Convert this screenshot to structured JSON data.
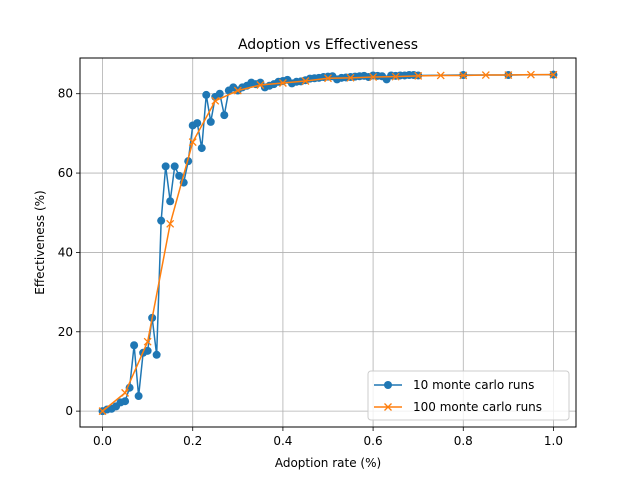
{
  "chart_data": {
    "type": "line",
    "title": "Adoption vs Effectiveness",
    "xlabel": "Adoption rate (%)",
    "ylabel": "Effectiveness (%)",
    "xlim": [
      -0.05,
      1.05
    ],
    "ylim": [
      -4,
      89
    ],
    "xticks": [
      0.0,
      0.2,
      0.4,
      0.6,
      0.8,
      1.0
    ],
    "xtick_labels": [
      "0.0",
      "0.2",
      "0.4",
      "0.6",
      "0.8",
      "1.0"
    ],
    "yticks": [
      0,
      20,
      40,
      60,
      80
    ],
    "ytick_labels": [
      "0",
      "20",
      "40",
      "60",
      "80"
    ],
    "grid": true,
    "legend_position": "lower-right",
    "series": [
      {
        "name": "10 monte carlo runs",
        "color": "#1f77b4",
        "marker": "circle",
        "x": [
          0.0,
          0.01,
          0.02,
          0.03,
          0.04,
          0.05,
          0.06,
          0.07,
          0.08,
          0.09,
          0.1,
          0.11,
          0.12,
          0.13,
          0.14,
          0.15,
          0.16,
          0.17,
          0.18,
          0.19,
          0.2,
          0.21,
          0.22,
          0.23,
          0.24,
          0.25,
          0.26,
          0.27,
          0.28,
          0.29,
          0.3,
          0.31,
          0.32,
          0.33,
          0.34,
          0.35,
          0.36,
          0.37,
          0.38,
          0.39,
          0.4,
          0.41,
          0.42,
          0.43,
          0.44,
          0.45,
          0.46,
          0.47,
          0.48,
          0.49,
          0.5,
          0.51,
          0.52,
          0.53,
          0.54,
          0.55,
          0.56,
          0.57,
          0.58,
          0.59,
          0.6,
          0.61,
          0.62,
          0.63,
          0.64,
          0.65,
          0.66,
          0.67,
          0.68,
          0.69,
          0.7,
          0.8,
          0.9,
          1.0
        ],
        "y": [
          0.0,
          0.4,
          0.6,
          1.2,
          2.2,
          2.5,
          5.9,
          16.6,
          3.8,
          14.7,
          15.2,
          23.5,
          14.2,
          48.0,
          61.7,
          52.9,
          61.7,
          59.3,
          57.6,
          63.0,
          72.0,
          72.6,
          66.3,
          79.7,
          72.9,
          79.2,
          80.0,
          74.6,
          80.8,
          81.6,
          80.8,
          81.6,
          82.0,
          82.8,
          82.4,
          82.8,
          81.6,
          82.0,
          82.4,
          83.0,
          83.2,
          83.5,
          82.6,
          83.0,
          83.1,
          83.4,
          83.8,
          83.9,
          84.0,
          84.2,
          84.3,
          84.4,
          83.6,
          84.0,
          84.1,
          84.2,
          84.3,
          84.4,
          84.5,
          84.2,
          84.6,
          84.5,
          84.4,
          83.6,
          84.6,
          84.5,
          84.6,
          84.6,
          84.7,
          84.7,
          84.6,
          84.7,
          84.7,
          84.8
        ]
      },
      {
        "name": "100 monte carlo runs",
        "color": "#ff7f0e",
        "marker": "x",
        "x": [
          0.0,
          0.05,
          0.1,
          0.15,
          0.2,
          0.25,
          0.3,
          0.35,
          0.4,
          0.45,
          0.5,
          0.55,
          0.6,
          0.65,
          0.7,
          0.75,
          0.8,
          0.85,
          0.9,
          0.95,
          1.0
        ],
        "y": [
          0.0,
          4.6,
          17.5,
          47.2,
          67.8,
          78.2,
          80.8,
          82.2,
          82.7,
          83.2,
          83.9,
          84.0,
          84.2,
          84.3,
          84.5,
          84.6,
          84.6,
          84.7,
          84.7,
          84.8,
          84.8
        ]
      }
    ]
  }
}
